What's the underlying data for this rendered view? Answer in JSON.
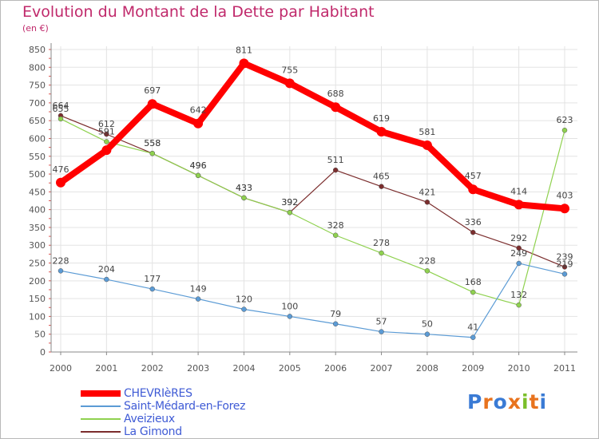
{
  "title": "Evolution du Montant de la Dette par Habitant",
  "unit": "(en €)",
  "brand": {
    "text": "Proxiti",
    "colors": [
      "#3a7bd5",
      "#e8731e",
      "#3a7bd5",
      "#e8731e",
      "#7bbf2a",
      "#e8731e",
      "#3a7bd5"
    ]
  },
  "chart_data": {
    "type": "line",
    "title": "Evolution du Montant de la Dette par Habitant",
    "ylabel": "(en €)",
    "xlabel": "",
    "x": [
      "2000",
      "2001",
      "2002",
      "2003",
      "2004",
      "2005",
      "2006",
      "2007",
      "2008",
      "2009",
      "2010",
      "2011"
    ],
    "ylim": [
      0,
      850
    ],
    "yticks": [
      0,
      50,
      100,
      150,
      200,
      250,
      300,
      350,
      400,
      450,
      500,
      550,
      600,
      650,
      700,
      750,
      800,
      850
    ],
    "grid": true,
    "legend": "bottom-left",
    "series": [
      {
        "name": "CHEVRIèRES",
        "color": "#ff0000",
        "values": [
          476,
          567,
          697,
          642,
          811,
          755,
          688,
          619,
          581,
          457,
          414,
          403
        ],
        "labels": [
          "476",
          "",
          "697",
          "642",
          "811",
          "755",
          "688",
          "619",
          "581",
          "457",
          "414",
          "403"
        ]
      },
      {
        "name": "Saint-Médard-en-Forez",
        "color": "#5b9bd5",
        "values": [
          228,
          204,
          177,
          149,
          120,
          100,
          79,
          57,
          50,
          41,
          249,
          219
        ],
        "labels": [
          "228",
          "204",
          "177",
          "149",
          "120",
          "100",
          "79",
          "57",
          "50",
          "41",
          "249",
          "219"
        ]
      },
      {
        "name": "Aveizieux",
        "color": "#8fd14f",
        "values": [
          655,
          591,
          558,
          496,
          433,
          392,
          328,
          278,
          228,
          168,
          132,
          623
        ],
        "labels": [
          "655",
          "591",
          "558",
          "496",
          "433",
          "392",
          "328",
          "278",
          "228",
          "168",
          "132",
          "623"
        ]
      },
      {
        "name": "La Gimond",
        "color": "#7b2d2d",
        "values": [
          664,
          612,
          558,
          496,
          433,
          392,
          511,
          465,
          421,
          336,
          292,
          239
        ],
        "labels": [
          "664",
          "612",
          "558",
          "496",
          "433",
          "392",
          "511",
          "465",
          "421",
          "336",
          "292",
          "239"
        ]
      }
    ]
  }
}
